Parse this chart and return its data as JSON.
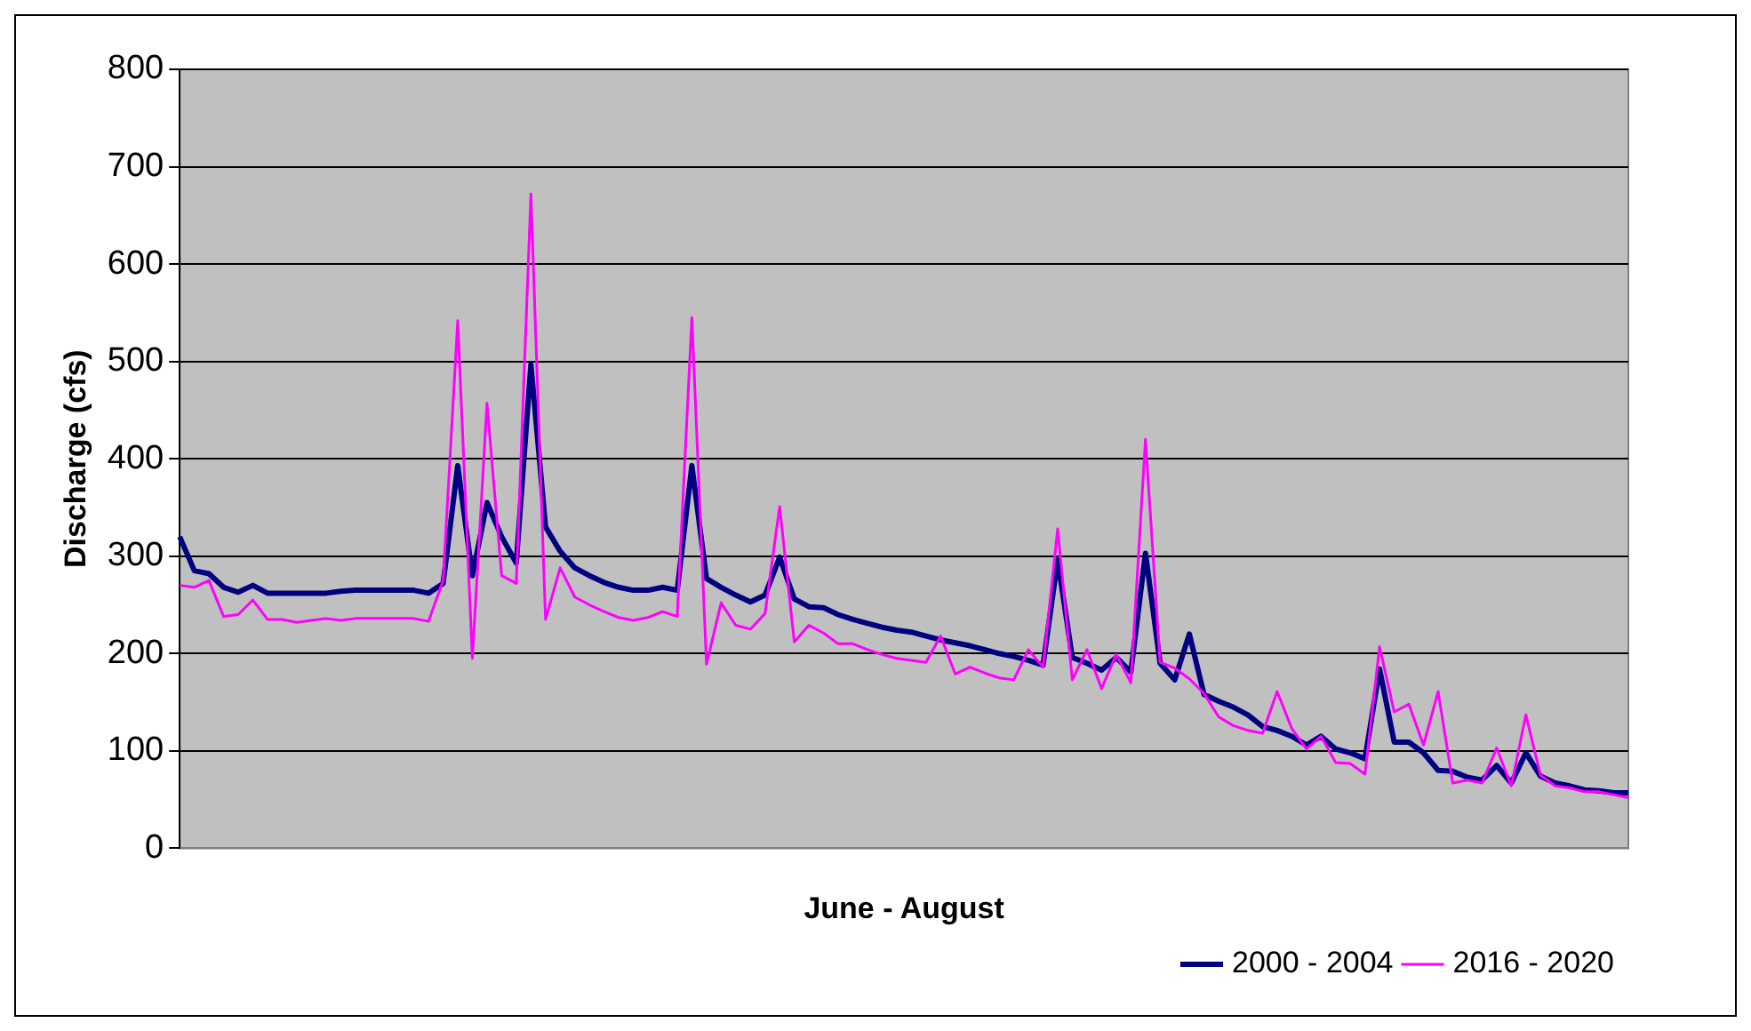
{
  "chart_data": {
    "type": "line",
    "xlabel": "June - August",
    "ylabel": "Discharge (cfs)",
    "categories": [
      null,
      null,
      null,
      null,
      null,
      null,
      null,
      null,
      null,
      null,
      null,
      null,
      null,
      null,
      null,
      null,
      null,
      null,
      null,
      null,
      null,
      null,
      null,
      null,
      null,
      null,
      null,
      null,
      null,
      null,
      null,
      null,
      null,
      null,
      null,
      null,
      null,
      null,
      null,
      null,
      null,
      null,
      null,
      null,
      null,
      null,
      null,
      null,
      null,
      null,
      null,
      null,
      null,
      null,
      null,
      null,
      null,
      null,
      null,
      null,
      null,
      null,
      null,
      null,
      null,
      null,
      null,
      null,
      null,
      null,
      null,
      null,
      null,
      null,
      null,
      null,
      null,
      null,
      null,
      null,
      null,
      null,
      null,
      null,
      null,
      null,
      null,
      null,
      null,
      null,
      null,
      null,
      null,
      null,
      null,
      null,
      null,
      null,
      null,
      null
    ],
    "series": [
      {
        "name": "2000 - 2004",
        "color": "#000080",
        "values": [
          320,
          285,
          282,
          268,
          263,
          270,
          262,
          262,
          262,
          262,
          262,
          264,
          265,
          265,
          265,
          265,
          265,
          262,
          272,
          393,
          280,
          355,
          320,
          293,
          497,
          330,
          305,
          288,
          280,
          273,
          268,
          265,
          265,
          268,
          265,
          393,
          277,
          268,
          260,
          253,
          260,
          299,
          256,
          248,
          247,
          240,
          235,
          231,
          227,
          224,
          222,
          218,
          214,
          211,
          208,
          204,
          200,
          197,
          193,
          188,
          296,
          196,
          190,
          183,
          196,
          181,
          303,
          190,
          173,
          220,
          158,
          151,
          145,
          137,
          125,
          121,
          115,
          106,
          115,
          102,
          98,
          92,
          184,
          109,
          109,
          98,
          80,
          79,
          73,
          70,
          85,
          67,
          98,
          74,
          67,
          64,
          60,
          59,
          57,
          57
        ]
      },
      {
        "name": "2016 - 2020",
        "color": "#ff00ff",
        "values": [
          270,
          268,
          275,
          238,
          240,
          255,
          235,
          235,
          232,
          234,
          236,
          234,
          236,
          236,
          236,
          236,
          236,
          233,
          275,
          542,
          195,
          457,
          280,
          272,
          672,
          235,
          288,
          258,
          250,
          243,
          237,
          234,
          237,
          243,
          238,
          545,
          189,
          252,
          229,
          225,
          241,
          351,
          212,
          229,
          221,
          210,
          210,
          204,
          199,
          195,
          193,
          191,
          218,
          179,
          186,
          180,
          175,
          173,
          204,
          186,
          328,
          173,
          204,
          164,
          199,
          170,
          420,
          191,
          185,
          174,
          159,
          135,
          126,
          121,
          118,
          161,
          123,
          102,
          115,
          88,
          87,
          76,
          207,
          140,
          148,
          106,
          161,
          67,
          70,
          67,
          103,
          64,
          137,
          75,
          64,
          62,
          58,
          58,
          55,
          52
        ]
      }
    ],
    "ylim": [
      0,
      800
    ],
    "yticks": [
      0,
      100,
      200,
      300,
      400,
      500,
      600,
      700,
      800
    ],
    "grid": "y",
    "legend": "bottom right",
    "marker": "none",
    "line_style": "solid"
  }
}
